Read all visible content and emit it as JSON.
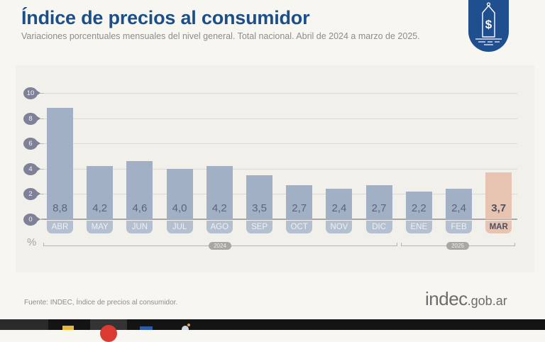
{
  "header": {
    "title": "Índice de precios al consumidor",
    "subtitle": "Variaciones porcentuales mensuales del nivel general. Total nacional. Abril de 2024 a marzo de 2025.",
    "logo_icon": "price-tag-dollar-icon"
  },
  "colors": {
    "title": "#1b4f8a",
    "bar": "#a2b0c5",
    "bar_highlight": "#e7c4b2",
    "badge": "#1f4f8f",
    "ytick": "#7e8197"
  },
  "chart_data": {
    "type": "bar",
    "title": "Índice de precios al consumidor",
    "subtitle": "Variaciones porcentuales mensuales del nivel general. Total nacional. Abril de 2024 a marzo de 2025.",
    "categories": [
      "ABR",
      "MAY",
      "JUN",
      "JUL",
      "AGO",
      "SEP",
      "OCT",
      "NOV",
      "DIC",
      "ENE",
      "FEB",
      "MAR"
    ],
    "values": [
      8.8,
      4.2,
      4.6,
      4.0,
      4.2,
      3.5,
      2.7,
      2.4,
      2.7,
      2.2,
      2.4,
      3.7
    ],
    "value_labels": [
      "8,8",
      "4,2",
      "4,6",
      "4,0",
      "4,2",
      "3,5",
      "2,7",
      "2,4",
      "2,7",
      "2,2",
      "2,4",
      "3,7"
    ],
    "highlight_index": 11,
    "xlabel": "",
    "ylabel": "%",
    "ylim": [
      0,
      10
    ],
    "yticks": [
      0,
      2,
      4,
      6,
      8,
      10
    ],
    "grid": true,
    "year_groups": [
      {
        "label": "2024",
        "from": "ABR",
        "to": "DIC"
      },
      {
        "label": "2025",
        "from": "ENE",
        "to": "MAR"
      }
    ]
  },
  "footer": {
    "source": "Fuente: INDEC, Índice de precios al consumidor.",
    "brand_main": "indec",
    "brand_tld": ".gob.ar"
  },
  "taskbar": {
    "items": [
      "file-explorer-icon",
      "chrome-icon",
      "word-icon",
      "app-icon"
    ]
  }
}
